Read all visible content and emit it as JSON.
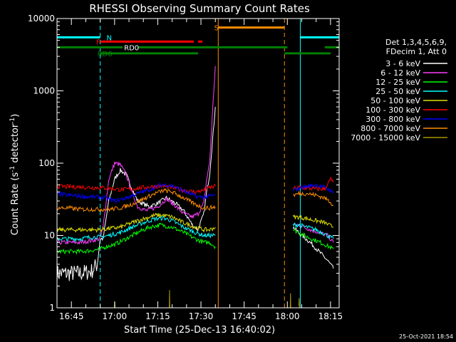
{
  "chart_data": {
    "type": "line",
    "title": "RHESSI Observing Summary Count Rates",
    "xlabel": "Start Time (25-Dec-13 16:40:02)",
    "ylabel": "Count Rate (s",
    "ylabel_sup": "-1",
    "ylabel_rest": " detector",
    "ylabel_sup2": "-1",
    "ylabel_end": ")",
    "x_unit": "minutes after 16:40:02",
    "xlim": [
      0,
      98
    ],
    "ylim": [
      1,
      10000
    ],
    "yscale": "log",
    "x_ticks": [
      {
        "t": 5,
        "label": "16:45"
      },
      {
        "t": 20,
        "label": "17:00"
      },
      {
        "t": 35,
        "label": "17:15"
      },
      {
        "t": 50,
        "label": "17:30"
      },
      {
        "t": 65,
        "label": "17:45"
      },
      {
        "t": 80,
        "label": "18:00"
      },
      {
        "t": 95,
        "label": "18:15"
      }
    ],
    "y_ticks": [
      {
        "v": 1,
        "label": "1"
      },
      {
        "v": 10,
        "label": "10"
      },
      {
        "v": 100,
        "label": "100"
      },
      {
        "v": 1000,
        "label": "1000"
      },
      {
        "v": 10000,
        "label": "10000"
      }
    ],
    "legend_header": [
      "Det 1,3,4,5,6,9,",
      "FDecim 1, Att 0"
    ],
    "legend_position": "right",
    "series": [
      {
        "name": "3 - 6 keV",
        "color": "#ffffff",
        "segments": [
          [
            [
              0,
              3
            ],
            [
              4,
              3
            ],
            [
              8,
              3
            ],
            [
              12,
              3.2
            ],
            [
              14,
              4
            ],
            [
              15,
              9
            ],
            [
              16,
              9
            ],
            [
              18,
              30
            ],
            [
              20,
              60
            ],
            [
              22,
              80
            ],
            [
              24,
              70
            ],
            [
              26,
              45
            ],
            [
              28,
              30
            ],
            [
              32,
              25
            ],
            [
              35,
              28
            ],
            [
              38,
              33
            ],
            [
              41,
              28
            ],
            [
              44,
              22
            ],
            [
              47,
              14
            ],
            [
              49,
              12
            ],
            [
              51,
              20
            ],
            [
              52,
              40
            ],
            [
              53,
              70
            ],
            [
              54,
              200
            ],
            [
              55,
              600
            ]
          ],
          [
            [
              82,
              13
            ],
            [
              83,
              12
            ],
            [
              85,
              10
            ],
            [
              88,
              8
            ],
            [
              91,
              6
            ],
            [
              94,
              4.5
            ],
            [
              96,
              3.5
            ]
          ]
        ]
      },
      {
        "name": "6 - 12 keV",
        "color": "#ff3cff",
        "segments": [
          [
            [
              0,
              8
            ],
            [
              4,
              8
            ],
            [
              8,
              8
            ],
            [
              12,
              8.5
            ],
            [
              15,
              9
            ],
            [
              16,
              13
            ],
            [
              18,
              60
            ],
            [
              20,
              100
            ],
            [
              22,
              95
            ],
            [
              24,
              70
            ],
            [
              26,
              40
            ],
            [
              28,
              25
            ],
            [
              31,
              22
            ],
            [
              35,
              25
            ],
            [
              38,
              32
            ],
            [
              41,
              26
            ],
            [
              44,
              20
            ],
            [
              47,
              18
            ],
            [
              49,
              20
            ],
            [
              51,
              28
            ],
            [
              52,
              60
            ],
            [
              53,
              100
            ],
            [
              54,
              500
            ],
            [
              55,
              2200
            ]
          ],
          [
            [
              82,
              14
            ],
            [
              84,
              14
            ],
            [
              86,
              13
            ],
            [
              88,
              12
            ],
            [
              91,
              11
            ],
            [
              94,
              10
            ],
            [
              96,
              8
            ]
          ]
        ]
      },
      {
        "name": "12 - 25 keV",
        "color": "#00ff00",
        "segments": [
          [
            [
              0,
              6
            ],
            [
              4,
              6
            ],
            [
              8,
              6
            ],
            [
              12,
              6.2
            ],
            [
              15,
              6.5
            ],
            [
              17,
              7
            ],
            [
              20,
              7.5
            ],
            [
              24,
              9
            ],
            [
              28,
              11
            ],
            [
              32,
              13
            ],
            [
              36,
              14
            ],
            [
              40,
              13
            ],
            [
              44,
              11
            ],
            [
              48,
              9
            ],
            [
              51,
              8
            ],
            [
              53,
              8
            ],
            [
              55,
              7
            ]
          ],
          [
            [
              82,
              12
            ],
            [
              84,
              11
            ],
            [
              87,
              9.5
            ],
            [
              90,
              8.5
            ],
            [
              93,
              7.5
            ],
            [
              96,
              6.5
            ]
          ]
        ]
      },
      {
        "name": "25 - 50 keV",
        "color": "#00ffff",
        "segments": [
          [
            [
              0,
              9
            ],
            [
              4,
              9
            ],
            [
              8,
              9
            ],
            [
              12,
              9.5
            ],
            [
              15,
              9.5
            ],
            [
              18,
              10
            ],
            [
              22,
              11
            ],
            [
              26,
              13
            ],
            [
              30,
              15
            ],
            [
              34,
              17
            ],
            [
              37,
              17.5
            ],
            [
              40,
              16
            ],
            [
              44,
              13
            ],
            [
              48,
              11
            ],
            [
              51,
              10
            ],
            [
              53,
              10
            ],
            [
              55,
              10
            ]
          ],
          [
            [
              82,
              14
            ],
            [
              84,
              14
            ],
            [
              87,
              13
            ],
            [
              90,
              12
            ],
            [
              93,
              10.5
            ],
            [
              96,
              9
            ]
          ]
        ]
      },
      {
        "name": "50 - 100 keV",
        "color": "#e0e000",
        "segments": [
          [
            [
              0,
              12
            ],
            [
              4,
              12
            ],
            [
              8,
              12
            ],
            [
              12,
              12
            ],
            [
              15,
              12
            ],
            [
              18,
              12.5
            ],
            [
              22,
              13
            ],
            [
              26,
              15
            ],
            [
              30,
              17
            ],
            [
              34,
              19
            ],
            [
              37,
              19
            ],
            [
              40,
              18
            ],
            [
              44,
              15
            ],
            [
              48,
              13
            ],
            [
              51,
              12
            ],
            [
              53,
              12
            ],
            [
              55,
              13
            ]
          ],
          [
            [
              82,
              18
            ],
            [
              84,
              18
            ],
            [
              87,
              17
            ],
            [
              90,
              16
            ],
            [
              93,
              15
            ],
            [
              96,
              13
            ]
          ]
        ]
      },
      {
        "name": "100 - 300 keV",
        "color": "#ff0000",
        "segments": [
          [
            [
              0,
              48
            ],
            [
              4,
              47
            ],
            [
              8,
              47
            ],
            [
              12,
              46
            ],
            [
              15,
              46
            ],
            [
              18,
              45
            ],
            [
              22,
              43
            ],
            [
              26,
              44
            ],
            [
              30,
              46
            ],
            [
              34,
              48
            ],
            [
              37,
              48
            ],
            [
              40,
              46
            ],
            [
              44,
              42
            ],
            [
              48,
              40
            ],
            [
              51,
              42
            ],
            [
              53,
              46
            ],
            [
              55,
              48
            ]
          ],
          [
            [
              82,
              45
            ],
            [
              84,
              46
            ],
            [
              87,
              45
            ],
            [
              90,
              44
            ],
            [
              93,
              44
            ],
            [
              95,
              60
            ],
            [
              96,
              55
            ]
          ]
        ]
      },
      {
        "name": "300 - 800 keV",
        "color": "#0000ff",
        "segments": [
          [
            [
              0,
              38
            ],
            [
              4,
              36
            ],
            [
              8,
              35
            ],
            [
              12,
              34
            ],
            [
              15,
              34
            ],
            [
              17,
              33
            ],
            [
              20,
              30
            ],
            [
              24,
              33
            ],
            [
              28,
              38
            ],
            [
              32,
              43
            ],
            [
              36,
              50
            ],
            [
              39,
              50
            ],
            [
              42,
              45
            ],
            [
              46,
              38
            ],
            [
              49,
              34
            ],
            [
              51,
              34
            ],
            [
              53,
              35
            ],
            [
              55,
              36
            ]
          ],
          [
            [
              82,
              42
            ],
            [
              84,
              45
            ],
            [
              87,
              48
            ],
            [
              90,
              50
            ],
            [
              93,
              46
            ],
            [
              95,
              42
            ],
            [
              96,
              38
            ]
          ]
        ]
      },
      {
        "name": "800 - 7000 keV",
        "color": "#ff8c00",
        "segments": [
          [
            [
              0,
              24
            ],
            [
              4,
              24
            ],
            [
              8,
              23
            ],
            [
              12,
              23
            ],
            [
              15,
              23
            ],
            [
              18,
              23
            ],
            [
              22,
              24
            ],
            [
              26,
              27
            ],
            [
              30,
              32
            ],
            [
              34,
              38
            ],
            [
              37,
              42
            ],
            [
              40,
              40
            ],
            [
              44,
              33
            ],
            [
              48,
              27
            ],
            [
              51,
              24
            ],
            [
              53,
              24
            ],
            [
              55,
              25
            ]
          ],
          [
            [
              82,
              36
            ],
            [
              84,
              38
            ],
            [
              87,
              38
            ],
            [
              90,
              36
            ],
            [
              93,
              33
            ],
            [
              95,
              29
            ],
            [
              96,
              26
            ]
          ]
        ]
      },
      {
        "name": "7000 - 15000 keV",
        "color": "#a89400",
        "segments": [
          [
            [
              20,
              1
            ],
            [
              20.1,
              1.2
            ],
            [
              20.2,
              1
            ]
          ],
          [
            [
              39,
              1
            ],
            [
              39.1,
              1.8
            ],
            [
              39.2,
              1
            ]
          ],
          [
            [
              81,
              1
            ],
            [
              81.1,
              1.6
            ],
            [
              81.2,
              1
            ]
          ],
          [
            [
              84,
              1
            ],
            [
              84.1,
              1.4
            ],
            [
              84.2,
              1
            ]
          ]
        ]
      }
    ],
    "flags": [
      {
        "code": "N",
        "color": "#00ffff",
        "level": 5500,
        "label_t": 17.2,
        "spans": [
          [
            0,
            15
          ],
          [
            84.5,
            98
          ]
        ]
      },
      {
        "code": "F",
        "color": "#ff0000",
        "level": 4800,
        "label_t": 13.6,
        "spans": [
          [
            15,
            47.5
          ],
          [
            49,
            50.5
          ]
        ]
      },
      {
        "code": "RD0",
        "color": "#008000",
        "level": 4000,
        "label_t": 23.3,
        "spans": [
          [
            0,
            80
          ],
          [
            93,
            98
          ]
        ],
        "label_color": "#ffffff",
        "label_box": "#008000"
      },
      {
        "code": "RD6",
        "color": "#008000",
        "level": 3300,
        "label_t": 14,
        "spans": [
          [
            15,
            49
          ],
          [
            79,
            95
          ]
        ]
      },
      {
        "code": "S",
        "color": "#ff8c00",
        "level": 7500,
        "label_t": 54.6,
        "spans": [
          [
            56,
            79
          ]
        ]
      }
    ],
    "vlines": [
      {
        "t": 0,
        "color": "#00ffff",
        "style": "solid"
      },
      {
        "t": 15,
        "color": "#00ffff",
        "style": "dashed"
      },
      {
        "t": 56,
        "color": "#ff8c00",
        "style": "solid"
      },
      {
        "t": 79,
        "color": "#ff8c00",
        "style": "dashed"
      },
      {
        "t": 84.5,
        "color": "#00ffff",
        "style": "solid"
      },
      {
        "t": 98,
        "color": "#00ffff",
        "style": "dashed"
      }
    ]
  },
  "timestamp": "25-Oct-2021 18:54"
}
